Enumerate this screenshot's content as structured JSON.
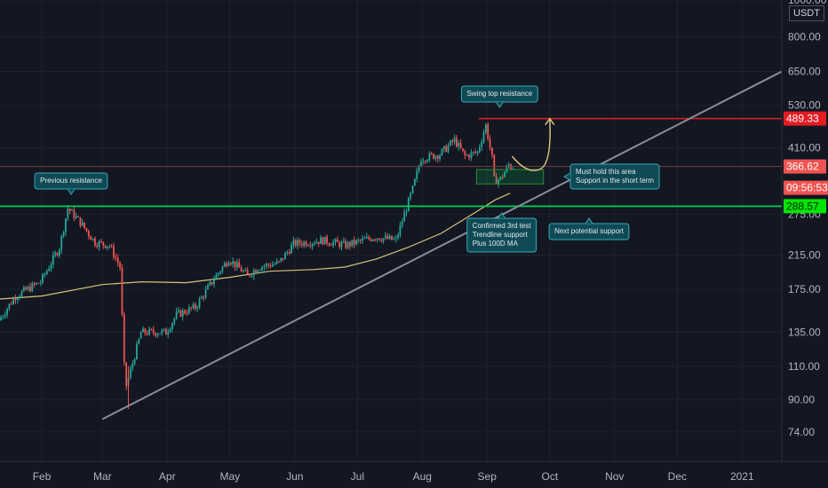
{
  "currency_label": "USDT",
  "chart_data": {
    "type": "candlestick",
    "x_labels": [
      "Feb",
      "Mar",
      "Apr",
      "May",
      "Jun",
      "Jul",
      "Aug",
      "Sep",
      "Oct",
      "Nov",
      "Dec",
      "2021"
    ],
    "y_labels": [
      "1000.00",
      "800.00",
      "650.00",
      "530.00",
      "410.00",
      "275.00",
      "215.00",
      "175.00",
      "135.00",
      "110.00",
      "90.00",
      "74.00"
    ],
    "y_scale": "log",
    "ylim": [
      62,
      1000
    ],
    "date_range": [
      "2020-01-12",
      "2021-01-20"
    ],
    "price_tags": {
      "resistance": {
        "value": "489.33",
        "color": "#e31b23"
      },
      "current": {
        "value": "366.62",
        "color": "#ef5350"
      },
      "countdown": {
        "value": "09:56:53",
        "color": "#ef5350"
      },
      "support": {
        "value": "288.57",
        "color": "#00e600"
      }
    },
    "annotations": {
      "previous_resistance": "Previous resistance",
      "swing_top": "Swing top resistance",
      "must_hold": [
        "Must hold this area",
        "Support in the short term"
      ],
      "confirmed": [
        "Confirmed 3rd test",
        "Trendline support",
        "Plus 100D MA"
      ],
      "next_support": "Next potential support"
    },
    "horizontal_levels": [
      489.33,
      366.62,
      288.57
    ],
    "trendline": {
      "from": [
        "2020-03-01",
        80
      ],
      "to": [
        "2021-01-20",
        650
      ]
    },
    "ma_label": "100D MA",
    "ma_color": "#d9c27a",
    "up_color": "#26a69a",
    "down_color": "#ef5350",
    "anchors": [
      [
        "2020-01-12",
        145
      ],
      [
        "2020-01-20",
        168
      ],
      [
        "2020-02-01",
        183
      ],
      [
        "2020-02-10",
        225
      ],
      [
        "2020-02-14",
        285
      ],
      [
        "2020-02-20",
        262
      ],
      [
        "2020-02-27",
        232
      ],
      [
        "2020-03-05",
        228
      ],
      [
        "2020-03-10",
        200
      ],
      [
        "2020-03-12",
        110
      ],
      [
        "2020-03-13",
        98
      ],
      [
        "2020-03-16",
        112
      ],
      [
        "2020-03-20",
        135
      ],
      [
        "2020-04-01",
        135
      ],
      [
        "2020-04-06",
        150
      ],
      [
        "2020-04-15",
        157
      ],
      [
        "2020-04-25",
        190
      ],
      [
        "2020-05-01",
        210
      ],
      [
        "2020-05-10",
        190
      ],
      [
        "2020-05-15",
        200
      ],
      [
        "2020-05-25",
        205
      ],
      [
        "2020-06-01",
        230
      ],
      [
        "2020-06-15",
        235
      ],
      [
        "2020-06-26",
        228
      ],
      [
        "2020-07-10",
        240
      ],
      [
        "2020-07-20",
        235
      ],
      [
        "2020-07-24",
        275
      ],
      [
        "2020-07-28",
        320
      ],
      [
        "2020-08-01",
        385
      ],
      [
        "2020-08-10",
        395
      ],
      [
        "2020-08-17",
        430
      ],
      [
        "2020-08-22",
        390
      ],
      [
        "2020-08-28",
        400
      ],
      [
        "2020-09-01",
        470
      ],
      [
        "2020-09-02",
        440
      ],
      [
        "2020-09-04",
        385
      ],
      [
        "2020-09-05",
        338
      ],
      [
        "2020-09-08",
        340
      ],
      [
        "2020-09-12",
        370
      ],
      [
        "2020-09-13",
        366
      ]
    ],
    "ma_points": [
      [
        "2020-01-12",
        165
      ],
      [
        "2020-02-01",
        168
      ],
      [
        "2020-03-01",
        180
      ],
      [
        "2020-03-20",
        183
      ],
      [
        "2020-04-10",
        182
      ],
      [
        "2020-05-01",
        188
      ],
      [
        "2020-05-20",
        195
      ],
      [
        "2020-06-10",
        197
      ],
      [
        "2020-06-25",
        200
      ],
      [
        "2020-07-10",
        210
      ],
      [
        "2020-07-25",
        225
      ],
      [
        "2020-08-10",
        245
      ],
      [
        "2020-08-25",
        275
      ],
      [
        "2020-09-05",
        300
      ],
      [
        "2020-09-12",
        312
      ]
    ],
    "projection": [
      [
        "2020-09-13",
        390
      ],
      [
        "2020-09-20",
        350
      ],
      [
        "2020-09-26",
        360
      ],
      [
        "2020-10-01",
        489.33
      ]
    ]
  }
}
